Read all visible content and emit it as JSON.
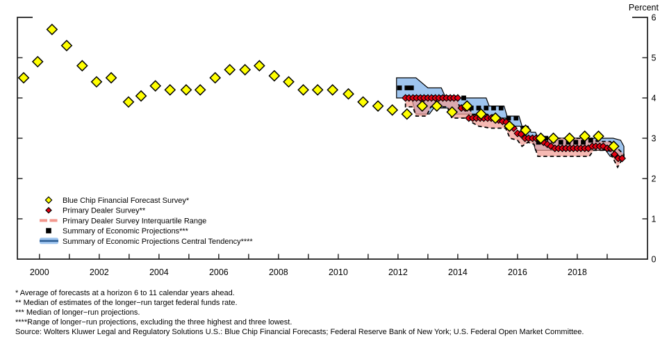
{
  "chart": {
    "y_axis_title": "Percent"
  },
  "legend": {
    "items": [
      {
        "label": "Blue Chip Financial Forecast Survey*",
        "marker": "yellow-diamond"
      },
      {
        "label": "Primary Dealer Survey**",
        "marker": "red-diamond"
      },
      {
        "label": "Primary Dealer Survey Interquartile Range",
        "marker": "pink-dashed-band"
      },
      {
        "label": "Summary of Economic Projections***",
        "marker": "black-square"
      },
      {
        "label": "Summary of Economic Projections Central Tendency****",
        "marker": "blue-band"
      }
    ]
  },
  "footnotes": {
    "lines": [
      "* Average of forecasts at a horizon 6 to 11 calendar years ahead.",
      "** Median of estimates of the longer−run target federal funds rate.",
      "*** Median of longer−run projections.",
      "****Range of longer−run projections, excluding the three highest and three lowest.",
      "Source: Wolters Kluwer Legal and Regulatory Solutions U.S.: Blue Chip Financial Forecasts; Federal Reserve Bank of New York; U.S. Federal Open Market Committee."
    ]
  },
  "chart_data": {
    "type": "mixed",
    "title": "",
    "y_axis_title": "Percent",
    "ylim": [
      0,
      6
    ],
    "xlim": [
      1999.26,
      2020.35
    ],
    "grid": false,
    "legend_position": "lower-left-inside",
    "y_ticks": [
      {
        "v": 0,
        "label": "0"
      },
      {
        "v": 1,
        "label": "1"
      },
      {
        "v": 2,
        "label": "2"
      },
      {
        "v": 3,
        "label": "3"
      },
      {
        "v": 4,
        "label": "4"
      },
      {
        "v": 5,
        "label": "5"
      },
      {
        "v": 6,
        "label": "6"
      }
    ],
    "x_ticks": [
      {
        "year": 2000,
        "label": "2000"
      },
      {
        "year": 2001,
        "label": ""
      },
      {
        "year": 2002,
        "label": "2002"
      },
      {
        "year": 2003,
        "label": ""
      },
      {
        "year": 2004,
        "label": "2004"
      },
      {
        "year": 2005,
        "label": ""
      },
      {
        "year": 2006,
        "label": "2006"
      },
      {
        "year": 2007,
        "label": ""
      },
      {
        "year": 2008,
        "label": "2008"
      },
      {
        "year": 2009,
        "label": ""
      },
      {
        "year": 2010,
        "label": "2010"
      },
      {
        "year": 2011,
        "label": ""
      },
      {
        "year": 2012,
        "label": "2012"
      },
      {
        "year": 2013,
        "label": ""
      },
      {
        "year": 2014,
        "label": "2014"
      },
      {
        "year": 2015,
        "label": ""
      },
      {
        "year": 2016,
        "label": "2016"
      },
      {
        "year": 2017,
        "label": ""
      },
      {
        "year": 2018,
        "label": "2018"
      },
      {
        "year": 2019,
        "label": ""
      }
    ],
    "series": [
      {
        "name": "Blue Chip Financial Forecast Survey*",
        "type": "scatter",
        "marker": "diamond",
        "color": "#FFFF00",
        "outline": "#000000",
        "size": 7.3,
        "points": [
          [
            1999.47,
            4.5
          ],
          [
            1999.94,
            4.9
          ],
          [
            2000.42,
            5.7
          ],
          [
            2000.91,
            5.3
          ],
          [
            2001.43,
            4.8
          ],
          [
            2001.91,
            4.4
          ],
          [
            2002.4,
            4.5
          ],
          [
            2002.98,
            3.9
          ],
          [
            2003.4,
            4.05
          ],
          [
            2003.88,
            4.3
          ],
          [
            2004.37,
            4.2
          ],
          [
            2004.91,
            4.2
          ],
          [
            2005.38,
            4.2
          ],
          [
            2005.88,
            4.5
          ],
          [
            2006.37,
            4.7
          ],
          [
            2006.88,
            4.7
          ],
          [
            2007.36,
            4.8
          ],
          [
            2007.86,
            4.55
          ],
          [
            2008.34,
            4.4
          ],
          [
            2008.83,
            4.2
          ],
          [
            2009.31,
            4.2
          ],
          [
            2009.81,
            4.2
          ],
          [
            2010.34,
            4.1
          ],
          [
            2010.83,
            3.9
          ],
          [
            2011.33,
            3.8
          ],
          [
            2011.81,
            3.7
          ],
          [
            2012.3,
            3.6
          ],
          [
            2012.81,
            3.8
          ],
          [
            2013.3,
            3.8
          ],
          [
            2013.81,
            3.65
          ],
          [
            2014.31,
            3.8
          ],
          [
            2014.78,
            3.6
          ],
          [
            2015.26,
            3.5
          ],
          [
            2015.73,
            3.3
          ],
          [
            2016.27,
            3.2
          ],
          [
            2016.78,
            3.0
          ],
          [
            2017.2,
            3.0
          ],
          [
            2017.74,
            3.0
          ],
          [
            2018.25,
            3.05
          ],
          [
            2018.71,
            3.05
          ],
          [
            2019.22,
            2.8
          ]
        ]
      },
      {
        "name": "Primary Dealer Survey**",
        "type": "scatter",
        "marker": "diamond",
        "color": "#E60012",
        "outline": "#000000",
        "size": 4.8,
        "points": [
          [
            2012.25,
            4.0
          ],
          [
            2012.37,
            4.0
          ],
          [
            2012.5,
            4.0
          ],
          [
            2012.62,
            4.0
          ],
          [
            2012.75,
            4.0
          ],
          [
            2012.87,
            4.0
          ],
          [
            2013.0,
            4.0
          ],
          [
            2013.12,
            4.0
          ],
          [
            2013.25,
            4.0
          ],
          [
            2013.37,
            4.0
          ],
          [
            2013.5,
            4.0
          ],
          [
            2013.62,
            4.0
          ],
          [
            2013.75,
            4.0
          ],
          [
            2013.87,
            4.0
          ],
          [
            2014.0,
            4.0
          ],
          [
            2014.12,
            3.75
          ],
          [
            2014.25,
            3.75
          ],
          [
            2014.37,
            3.5
          ],
          [
            2014.5,
            3.5
          ],
          [
            2014.62,
            3.5
          ],
          [
            2014.75,
            3.5
          ],
          [
            2014.87,
            3.5
          ],
          [
            2015.0,
            3.5
          ],
          [
            2015.12,
            3.5
          ],
          [
            2015.25,
            3.5
          ],
          [
            2015.37,
            3.45
          ],
          [
            2015.5,
            3.42
          ],
          [
            2015.62,
            3.4
          ],
          [
            2015.75,
            3.3
          ],
          [
            2015.87,
            3.25
          ],
          [
            2016.0,
            3.12
          ],
          [
            2016.12,
            3.1
          ],
          [
            2016.25,
            3.0
          ],
          [
            2016.37,
            3.0
          ],
          [
            2016.5,
            3.0
          ],
          [
            2016.62,
            3.0
          ],
          [
            2016.75,
            2.95
          ],
          [
            2016.87,
            2.9
          ],
          [
            2017.0,
            2.85
          ],
          [
            2017.12,
            2.8
          ],
          [
            2017.25,
            2.75
          ],
          [
            2017.37,
            2.75
          ],
          [
            2017.5,
            2.75
          ],
          [
            2017.62,
            2.75
          ],
          [
            2017.75,
            2.75
          ],
          [
            2017.87,
            2.75
          ],
          [
            2018.0,
            2.75
          ],
          [
            2018.12,
            2.75
          ],
          [
            2018.25,
            2.75
          ],
          [
            2018.37,
            2.75
          ],
          [
            2018.5,
            2.8
          ],
          [
            2018.62,
            2.8
          ],
          [
            2018.75,
            2.8
          ],
          [
            2018.87,
            2.8
          ],
          [
            2019.0,
            2.75
          ],
          [
            2019.12,
            2.75
          ],
          [
            2019.25,
            2.6
          ],
          [
            2019.37,
            2.5
          ],
          [
            2019.5,
            2.5
          ]
        ]
      },
      {
        "name": "Primary Dealer Survey Interquartile Range",
        "type": "band",
        "fill_color": "rgba(243,158,149,0.72)",
        "border_color": "#000000",
        "border_style": "dashed",
        "legend_color": "#F2988E",
        "top": [
          [
            2012.25,
            4.05
          ],
          [
            2013.95,
            4.05
          ],
          [
            2014.05,
            3.8
          ],
          [
            2014.35,
            3.8
          ],
          [
            2014.5,
            3.58
          ],
          [
            2015.3,
            3.58
          ],
          [
            2015.45,
            3.5
          ],
          [
            2015.7,
            3.42
          ],
          [
            2015.9,
            3.3
          ],
          [
            2016.05,
            3.17
          ],
          [
            2016.3,
            3.05
          ],
          [
            2016.6,
            3.0
          ],
          [
            2017.2,
            3.0
          ],
          [
            2018.5,
            3.0
          ],
          [
            2018.65,
            2.92
          ],
          [
            2019.1,
            2.92
          ],
          [
            2019.3,
            2.78
          ],
          [
            2019.56,
            2.6
          ]
        ],
        "bottom": [
          [
            2012.25,
            3.78
          ],
          [
            2012.5,
            3.78
          ],
          [
            2012.6,
            3.55
          ],
          [
            2012.95,
            3.55
          ],
          [
            2013.1,
            3.78
          ],
          [
            2013.65,
            3.78
          ],
          [
            2013.8,
            3.5
          ],
          [
            2014.35,
            3.5
          ],
          [
            2014.5,
            3.38
          ],
          [
            2014.7,
            3.3
          ],
          [
            2015.1,
            3.25
          ],
          [
            2015.6,
            3.25
          ],
          [
            2015.75,
            3.0
          ],
          [
            2016.0,
            2.95
          ],
          [
            2016.15,
            2.8
          ],
          [
            2016.35,
            2.9
          ],
          [
            2016.55,
            2.85
          ],
          [
            2016.68,
            2.55
          ],
          [
            2018.4,
            2.55
          ],
          [
            2018.55,
            2.7
          ],
          [
            2019.05,
            2.7
          ],
          [
            2019.2,
            2.5
          ],
          [
            2019.35,
            2.28
          ],
          [
            2019.56,
            2.55
          ]
        ]
      },
      {
        "name": "Summary of Economic Projections***",
        "type": "scatter",
        "marker": "square",
        "color": "#000000",
        "size": 6.8,
        "points": [
          [
            2012.05,
            4.25
          ],
          [
            2012.3,
            4.25
          ],
          [
            2012.45,
            4.25
          ],
          [
            2012.7,
            4.0
          ],
          [
            2012.95,
            4.0
          ],
          [
            2013.2,
            4.0
          ],
          [
            2013.45,
            4.0
          ],
          [
            2013.7,
            4.0
          ],
          [
            2013.95,
            4.0
          ],
          [
            2014.2,
            4.0
          ],
          [
            2014.45,
            3.75
          ],
          [
            2014.7,
            3.75
          ],
          [
            2014.95,
            3.75
          ],
          [
            2015.2,
            3.75
          ],
          [
            2015.45,
            3.75
          ],
          [
            2015.7,
            3.5
          ],
          [
            2015.95,
            3.5
          ],
          [
            2016.2,
            3.25
          ],
          [
            2016.45,
            3.0
          ],
          [
            2016.7,
            2.9
          ],
          [
            2016.95,
            3.0
          ],
          [
            2017.2,
            2.95
          ],
          [
            2017.45,
            2.9
          ],
          [
            2017.7,
            2.9
          ],
          [
            2017.95,
            2.9
          ],
          [
            2018.2,
            2.9
          ],
          [
            2018.45,
            2.95
          ],
          [
            2018.7,
            3.0
          ],
          [
            2018.95,
            2.75
          ],
          [
            2019.2,
            2.75
          ],
          [
            2019.45,
            2.5
          ]
        ]
      },
      {
        "name": "Summary of Economic Projections Central Tendency****",
        "type": "band",
        "fill_color": "#9FC5EF",
        "border_color": "#000000",
        "border_style": "solid",
        "legend_line_color": "#2E5E94",
        "top": [
          [
            2011.95,
            4.5
          ],
          [
            2012.6,
            4.5
          ],
          [
            2013.0,
            4.25
          ],
          [
            2013.45,
            4.25
          ],
          [
            2013.6,
            4.0
          ],
          [
            2014.95,
            4.0
          ],
          [
            2015.05,
            3.8
          ],
          [
            2015.55,
            3.8
          ],
          [
            2015.65,
            3.55
          ],
          [
            2016.05,
            3.55
          ],
          [
            2016.15,
            3.3
          ],
          [
            2016.35,
            3.3
          ],
          [
            2016.45,
            3.15
          ],
          [
            2016.6,
            3.15
          ],
          [
            2016.7,
            3.0
          ],
          [
            2019.2,
            3.0
          ],
          [
            2019.45,
            2.95
          ],
          [
            2019.56,
            2.8
          ]
        ],
        "bottom": [
          [
            2011.95,
            4.0
          ],
          [
            2012.45,
            4.0
          ],
          [
            2012.6,
            3.6
          ],
          [
            2013.05,
            3.6
          ],
          [
            2013.2,
            3.75
          ],
          [
            2013.7,
            3.75
          ],
          [
            2013.8,
            3.6
          ],
          [
            2015.0,
            3.6
          ],
          [
            2015.1,
            3.5
          ],
          [
            2015.6,
            3.5
          ],
          [
            2015.7,
            3.3
          ],
          [
            2016.1,
            3.3
          ],
          [
            2016.2,
            3.0
          ],
          [
            2016.5,
            3.0
          ],
          [
            2016.6,
            2.7
          ],
          [
            2018.95,
            2.7
          ],
          [
            2019.1,
            2.55
          ],
          [
            2019.56,
            2.5
          ]
        ]
      }
    ]
  }
}
